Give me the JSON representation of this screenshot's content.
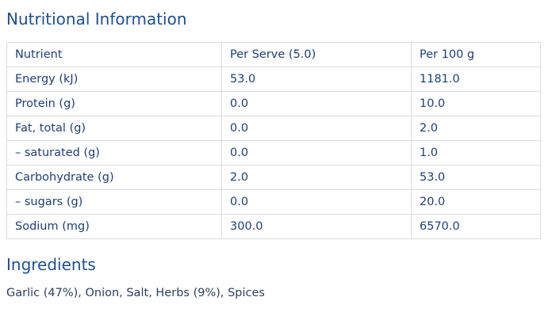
{
  "header": {
    "title": "Nutritional Information"
  },
  "table": {
    "columns": [
      "Nutrient",
      "Per Serve (5.0)",
      "Per 100 g"
    ],
    "rows": [
      [
        "Energy (kJ)",
        "53.0",
        "1181.0"
      ],
      [
        "Protein (g)",
        "0.0",
        "10.0"
      ],
      [
        "Fat, total (g)",
        "0.0",
        "2.0"
      ],
      [
        "– saturated (g)",
        "0.0",
        "1.0"
      ],
      [
        "Carbohydrate (g)",
        "2.0",
        "53.0"
      ],
      [
        "– sugars (g)",
        "0.0",
        "20.0"
      ],
      [
        "Sodium (mg)",
        "300.0",
        "6570.0"
      ]
    ]
  },
  "ingredients": {
    "title": "Ingredients",
    "text": "Garlic (47%), Onion, Salt, Herbs (9%), Spices"
  }
}
